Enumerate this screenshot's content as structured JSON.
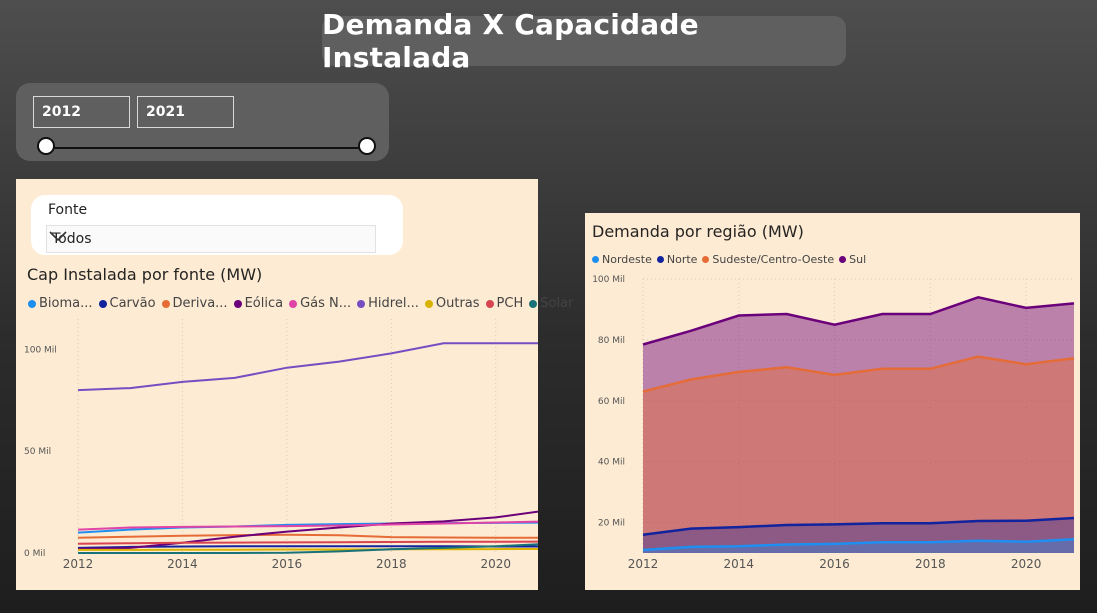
{
  "header": {
    "title": "Demanda X Capacidade Instalada"
  },
  "year_slicer": {
    "start": "2012",
    "end": "2021",
    "range": [
      2012,
      2021
    ]
  },
  "filter": {
    "label": "Fonte",
    "value": "Todos"
  },
  "colors": {
    "Biomassa": "#1f8ef1",
    "Carvao": "#12239e",
    "Derivados": "#e66c37",
    "Eolica": "#6b007b",
    "GasNatural": "#e044a7",
    "Hidreletrica": "#744ec2",
    "Outras": "#d9b300",
    "PCH": "#d64550",
    "Solar": "#197278"
  },
  "chart_data": [
    {
      "type": "line",
      "title": "Cap Instalada por fonte (MW)",
      "legend_position": "top",
      "grid": false,
      "x": [
        2012,
        2013,
        2014,
        2015,
        2016,
        2017,
        2018,
        2019,
        2020,
        2021
      ],
      "x_tick_labels": [
        "2012",
        "2014",
        "2016",
        "2018",
        "2020"
      ],
      "y_tick_labels": [
        "0 Mil",
        "50 Mil",
        "100 Mil"
      ],
      "ylim": [
        0,
        110000
      ],
      "series": [
        {
          "name": "Bioma...",
          "color": "#1f8ef1",
          "values": [
            10000,
            11500,
            12500,
            13000,
            13800,
            14200,
            14500,
            14700,
            14800,
            15000
          ]
        },
        {
          "name": "Carvão",
          "color": "#12239e",
          "values": [
            2500,
            3000,
            3200,
            3300,
            3300,
            3300,
            3300,
            3300,
            3200,
            3200
          ]
        },
        {
          "name": "Deriva...",
          "color": "#e66c37",
          "values": [
            7500,
            8000,
            8500,
            8800,
            9000,
            8700,
            7800,
            7600,
            7500,
            7500
          ]
        },
        {
          "name": "Eólica",
          "color": "#6b007b",
          "values": [
            2000,
            2500,
            5000,
            8000,
            10500,
            12500,
            14500,
            15500,
            17500,
            21000
          ]
        },
        {
          "name": "Gás N...",
          "color": "#e044a7",
          "values": [
            11500,
            12500,
            12800,
            13000,
            13200,
            13500,
            14000,
            14500,
            15000,
            15500
          ]
        },
        {
          "name": "Hidrel...",
          "color": "#744ec2",
          "values": [
            80000,
            81000,
            84000,
            86000,
            91000,
            94000,
            98000,
            103000,
            103000,
            103000
          ]
        },
        {
          "name": "Outras",
          "color": "#d9b300",
          "values": [
            1500,
            1500,
            1600,
            1600,
            1700,
            1700,
            1800,
            1800,
            1900,
            2000
          ]
        },
        {
          "name": "PCH",
          "color": "#d64550",
          "values": [
            4500,
            4800,
            5000,
            5100,
            5200,
            5300,
            5400,
            5500,
            5500,
            5600
          ]
        },
        {
          "name": "Solar",
          "color": "#197278",
          "values": [
            0,
            0,
            0,
            0,
            100,
            800,
            1800,
            2500,
            3300,
            4500
          ]
        }
      ]
    },
    {
      "type": "area",
      "title": "Demanda por região (MW)",
      "legend_position": "top",
      "grid": true,
      "stacked": true,
      "x": [
        2012,
        2013,
        2014,
        2015,
        2016,
        2017,
        2018,
        2019,
        2020,
        2021
      ],
      "x_tick_labels": [
        "2012",
        "2014",
        "2016",
        "2018",
        "2020"
      ],
      "y_tick_labels": [
        "20 Mil",
        "40 Mil",
        "60 Mil",
        "80 Mil",
        "100 Mil"
      ],
      "ylim": [
        10000,
        100000
      ],
      "series": [
        {
          "name": "Nordeste",
          "color": "#1f8ef1",
          "values": [
            11000,
            12000,
            12200,
            12800,
            13000,
            13500,
            13500,
            14000,
            13700,
            14500
          ]
        },
        {
          "name": "Norte",
          "color": "#12239e",
          "values": [
            16000,
            18000,
            18500,
            19200,
            19400,
            19800,
            19800,
            20500,
            20600,
            21500
          ]
        },
        {
          "name": "Sudeste/Centro-Oeste",
          "color": "#e66c37",
          "values": [
            63000,
            67000,
            69500,
            71000,
            68500,
            70500,
            70500,
            74500,
            72000,
            74000
          ]
        },
        {
          "name": "Sul",
          "color": "#6b007b",
          "values": [
            78500,
            83000,
            88000,
            88500,
            85000,
            88500,
            88500,
            94000,
            90500,
            92000
          ]
        }
      ]
    }
  ]
}
